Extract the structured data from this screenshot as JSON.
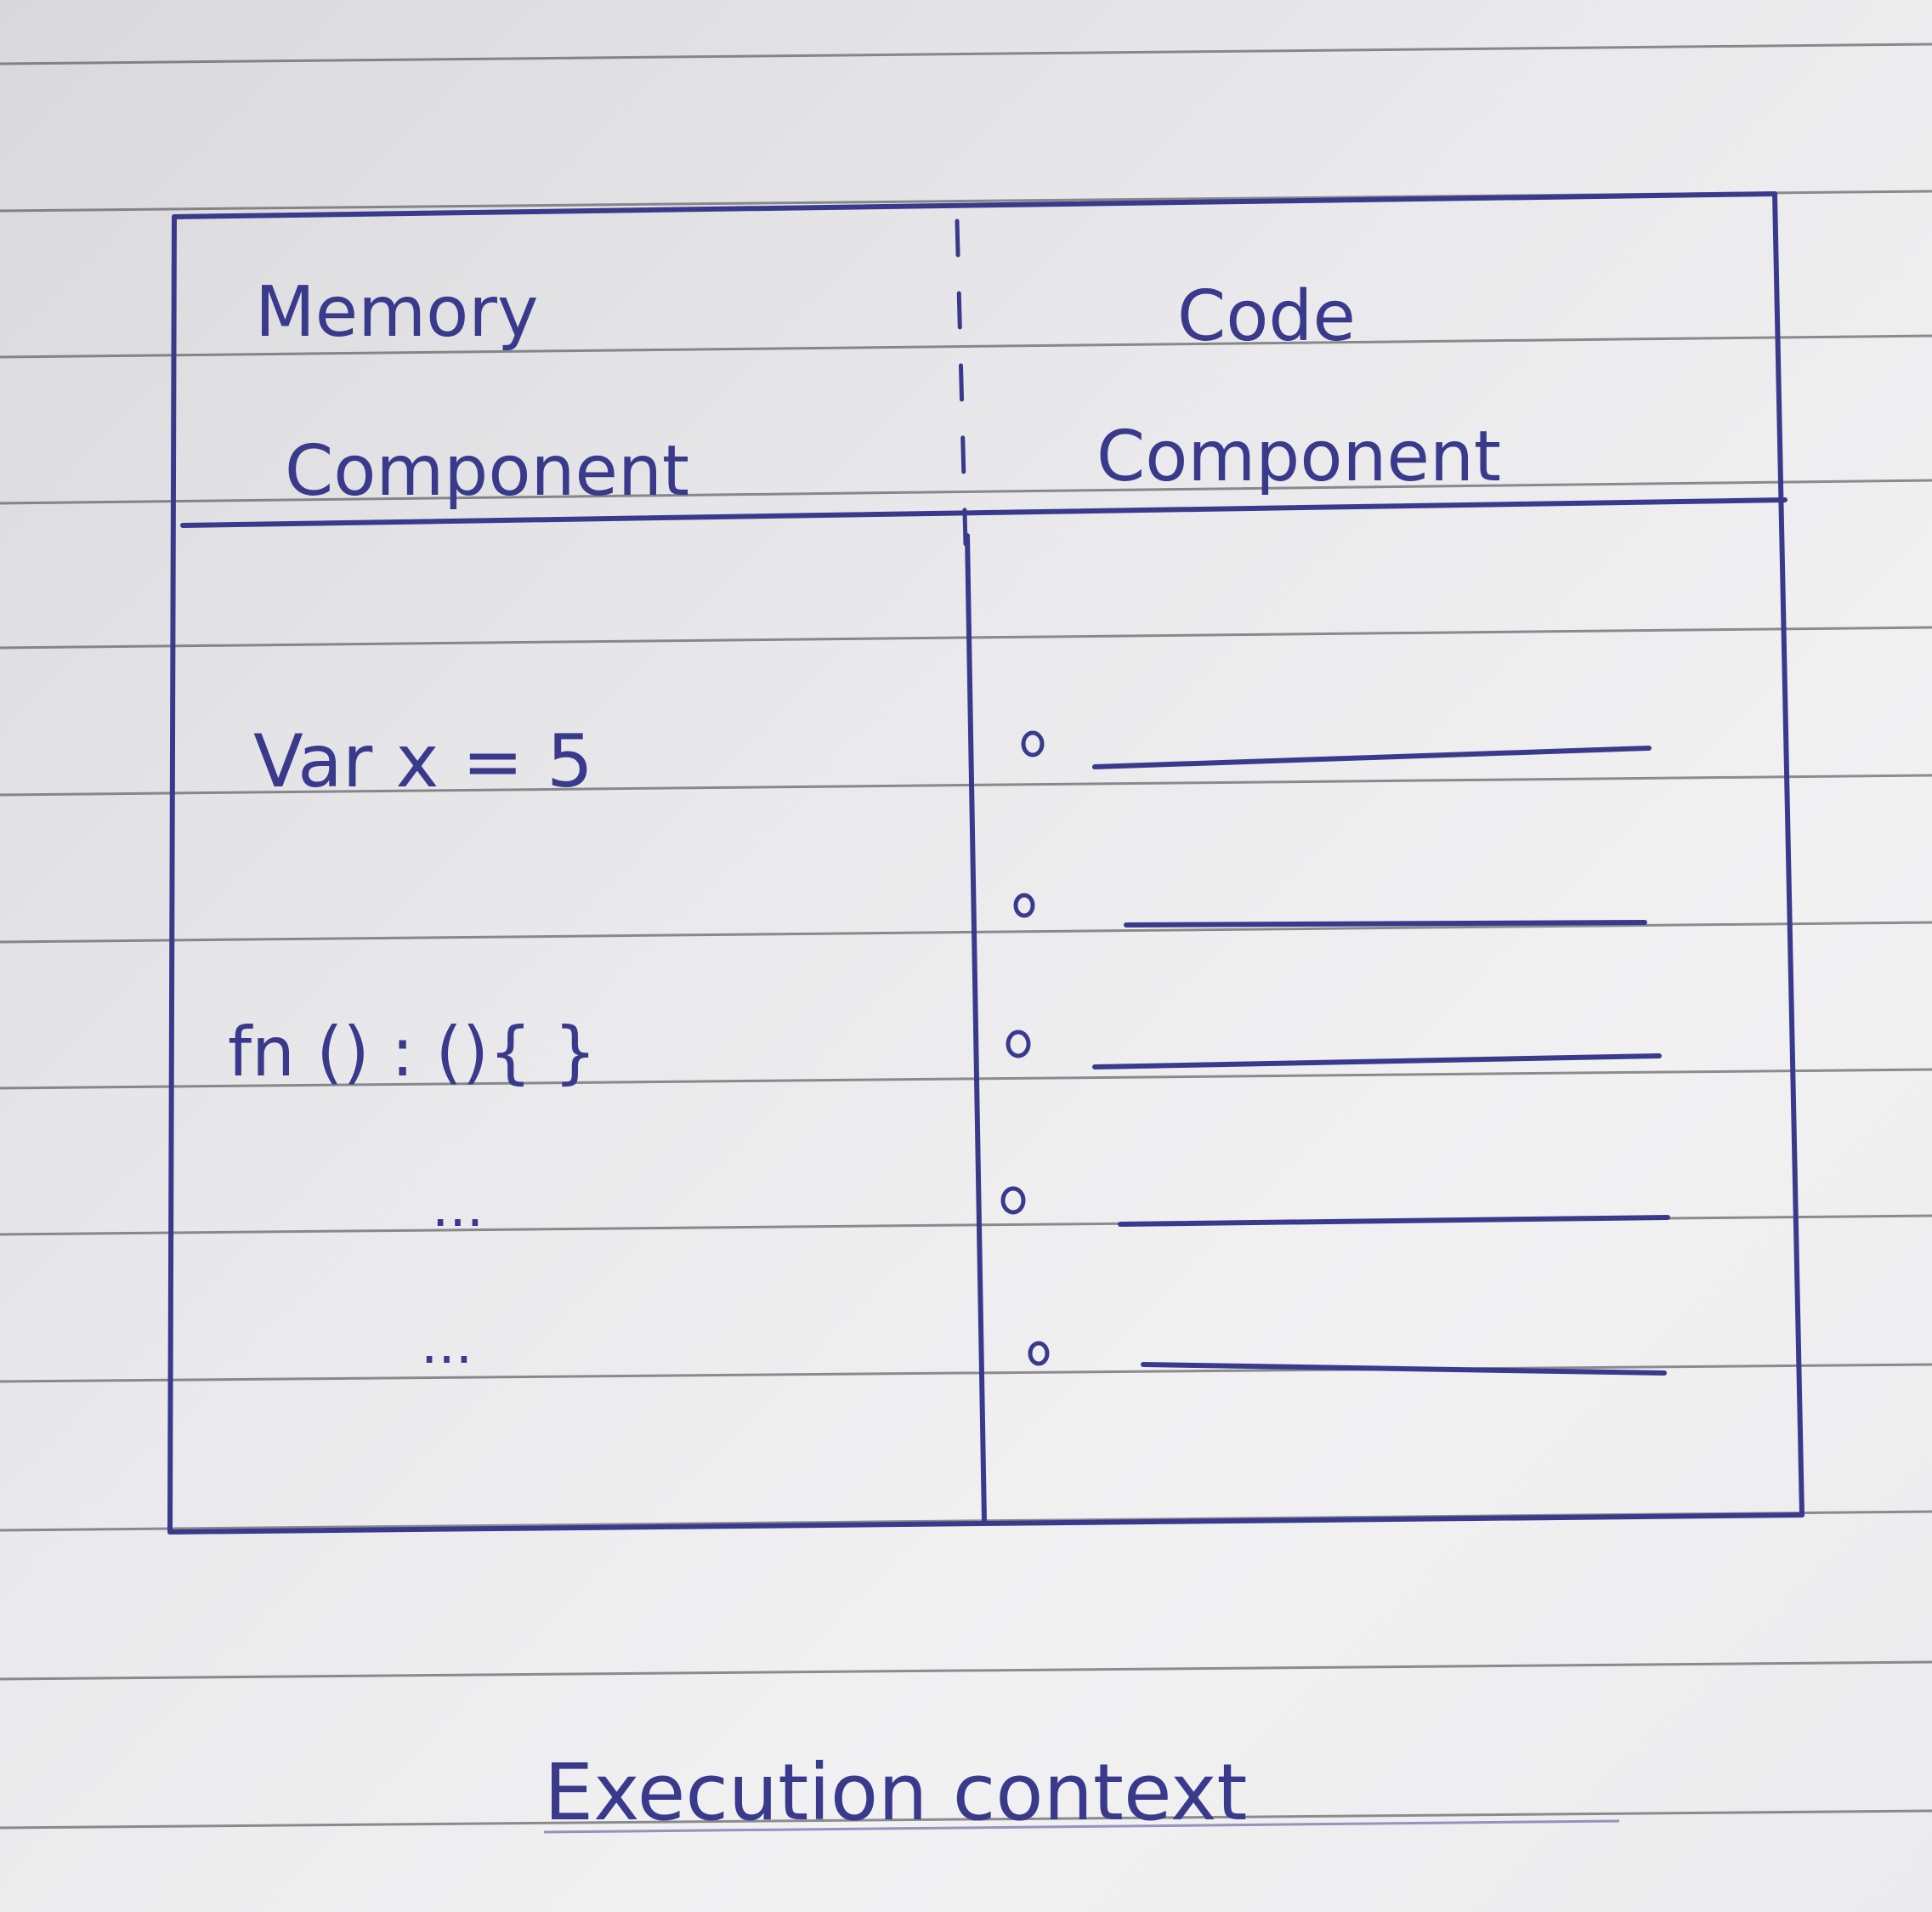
{
  "diagram": {
    "memory_header": [
      "Memory",
      "Component"
    ],
    "code_header": [
      "Code",
      "Component"
    ],
    "memory_entries": [
      "Var x = 5",
      "fn () : (){ }",
      "...",
      "..."
    ],
    "code_bullet_count": 5,
    "caption": "Execution context",
    "colors": {
      "ink": "#3a3a8c",
      "paper": "#ececee",
      "ruled_line": "#2f2f36"
    }
  }
}
